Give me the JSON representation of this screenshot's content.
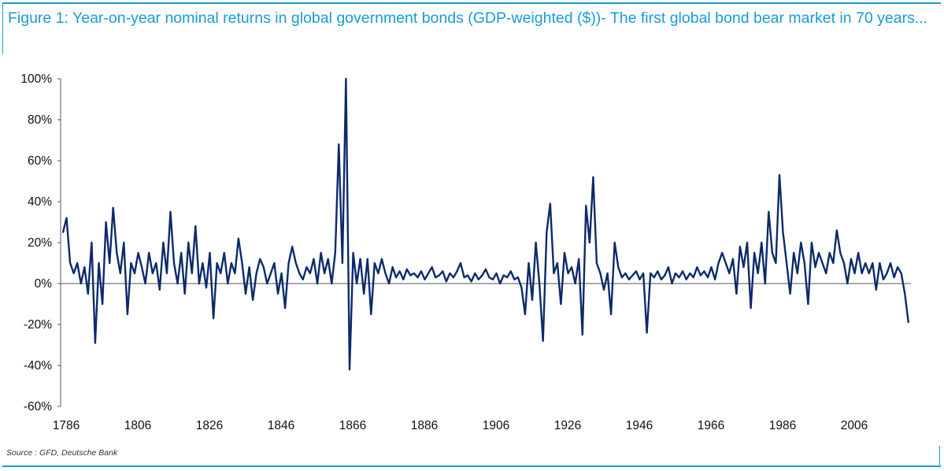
{
  "title": "Figure 1: Year-on-year nominal returns in global government bonds (GDP-weighted ($))- The first global bond bear market in 70 years...",
  "source": "Source : GFD, Deutsche Bank",
  "colors": {
    "accent": "#1a9ad6",
    "series": "#0c2a6b"
  },
  "chart_data": {
    "type": "line",
    "title": "Figure 1: Year-on-year nominal returns in global government bonds (GDP-weighted ($))- The first global bond bear market in 70 years...",
    "xlabel": "",
    "ylabel": "",
    "x_start": 1786,
    "x_end": 2022,
    "xlim": [
      1786,
      2022
    ],
    "ylim": [
      -60,
      100
    ],
    "grid": false,
    "x_ticks": [
      "1786",
      "1806",
      "1826",
      "1846",
      "1866",
      "1886",
      "1906",
      "1926",
      "1946",
      "1966",
      "1986",
      "2006"
    ],
    "y_ticks": [
      "100%",
      "80%",
      "60%",
      "40%",
      "20%",
      "0%",
      "-20%",
      "-40%",
      "-60%"
    ],
    "series": [
      {
        "name": "YoY nominal return (%)",
        "values": [
          25,
          32,
          10,
          5,
          10,
          0,
          8,
          -5,
          20,
          -29,
          10,
          -10,
          30,
          10,
          37,
          15,
          5,
          20,
          -15,
          10,
          5,
          15,
          8,
          0,
          15,
          5,
          10,
          -3,
          20,
          5,
          35,
          10,
          0,
          15,
          -5,
          20,
          5,
          28,
          0,
          10,
          -2,
          15,
          -17,
          10,
          5,
          15,
          0,
          10,
          5,
          22,
          10,
          -5,
          8,
          -8,
          5,
          12,
          8,
          0,
          5,
          10,
          -5,
          5,
          -12,
          10,
          18,
          10,
          5,
          2,
          8,
          5,
          12,
          0,
          15,
          5,
          12,
          0,
          15,
          68,
          10,
          100,
          -42,
          15,
          0,
          12,
          -5,
          12,
          -15,
          10,
          5,
          12,
          5,
          0,
          8,
          3,
          6,
          2,
          7,
          4,
          5,
          3,
          6,
          2,
          5,
          8,
          3,
          4,
          6,
          1,
          5,
          3,
          6,
          10,
          3,
          4,
          1,
          5,
          2,
          4,
          7,
          3,
          2,
          5,
          0,
          4,
          3,
          6,
          2,
          3,
          -2,
          -15,
          10,
          -8,
          20,
          0,
          -28,
          25,
          39,
          5,
          10,
          -10,
          15,
          5,
          8,
          0,
          12,
          -25,
          38,
          20,
          52,
          10,
          5,
          -3,
          5,
          -15,
          20,
          8,
          3,
          5,
          2,
          4,
          6,
          2,
          5,
          -24,
          5,
          3,
          6,
          2,
          4,
          8,
          0,
          5,
          3,
          6,
          2,
          5,
          3,
          8,
          4,
          6,
          3,
          8,
          2,
          10,
          15,
          10,
          5,
          12,
          -5,
          18,
          8,
          20,
          -12,
          15,
          5,
          20,
          0,
          35,
          15,
          10,
          53,
          25,
          10,
          -5,
          15,
          5,
          20,
          10,
          -10,
          20,
          8,
          15,
          10,
          5,
          15,
          10,
          26,
          15,
          10,
          0,
          12,
          5,
          15,
          5,
          10,
          5,
          10,
          -3,
          10,
          2,
          5,
          10,
          3,
          8,
          5,
          -5,
          -19
        ]
      }
    ]
  }
}
